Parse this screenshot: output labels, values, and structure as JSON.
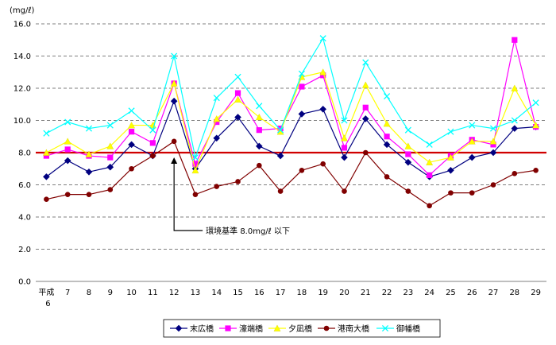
{
  "chart_data": {
    "type": "line",
    "unit_label": "(mg/ℓ)",
    "y_ticks": [
      "0.0",
      "2.0",
      "4.0",
      "6.0",
      "8.0",
      "10.0",
      "12.0",
      "14.0",
      "16.0"
    ],
    "ylim": [
      0,
      16
    ],
    "grid": "horizontal dashed",
    "x_first_label": [
      "平成",
      "6"
    ],
    "categories": [
      "6",
      "7",
      "8",
      "9",
      "10",
      "11",
      "12",
      "13",
      "14",
      "15",
      "16",
      "17",
      "18",
      "19",
      "20",
      "21",
      "22",
      "23",
      "24",
      "25",
      "26",
      "27",
      "28",
      "29"
    ],
    "x_tick_labels": [
      "平成6",
      "7",
      "8",
      "9",
      "10",
      "11",
      "12",
      "13",
      "14",
      "15",
      "16",
      "17",
      "18",
      "19",
      "20",
      "21",
      "22",
      "23",
      "24",
      "25",
      "26",
      "27",
      "28",
      "29"
    ],
    "reference_line": {
      "value": 8.0,
      "color": "#d00000"
    },
    "annotation": {
      "text": "環境基準 8.0mg/ℓ 以下",
      "category": "12"
    },
    "legend_position": "bottom",
    "series": [
      {
        "name": "末広橋",
        "color": "#000080",
        "marker": "diamond",
        "values": [
          6.5,
          7.5,
          6.8,
          7.1,
          8.5,
          7.8,
          11.2,
          7.0,
          8.9,
          10.2,
          8.4,
          7.8,
          10.4,
          10.7,
          7.7,
          10.1,
          8.5,
          7.4,
          6.5,
          6.9,
          7.7,
          8.0,
          9.5,
          9.6
        ]
      },
      {
        "name": "濠端橋",
        "color": "#ff00ff",
        "marker": "square",
        "values": [
          7.8,
          8.2,
          7.8,
          7.7,
          9.3,
          8.6,
          12.3,
          7.3,
          9.9,
          11.7,
          9.4,
          9.5,
          12.1,
          12.8,
          8.3,
          10.8,
          9.0,
          7.9,
          6.6,
          7.8,
          8.8,
          8.5,
          15.0,
          9.6
        ]
      },
      {
        "name": "夕凪橋",
        "color": "#ffff00",
        "marker": "triangle",
        "values": [
          8.0,
          8.7,
          7.9,
          8.4,
          9.7,
          9.7,
          12.3,
          6.9,
          10.1,
          11.3,
          10.2,
          9.3,
          12.7,
          13.0,
          8.9,
          12.2,
          9.8,
          8.4,
          7.4,
          7.7,
          8.7,
          8.7,
          12.0,
          9.7
        ]
      },
      {
        "name": "港南大橋",
        "color": "#800000",
        "marker": "circle",
        "values": [
          5.1,
          5.4,
          5.4,
          5.7,
          7.0,
          7.8,
          8.7,
          5.4,
          5.9,
          6.2,
          7.2,
          5.6,
          6.9,
          7.3,
          5.6,
          8.0,
          6.5,
          5.6,
          4.7,
          5.5,
          5.5,
          6.0,
          6.7,
          6.9
        ]
      },
      {
        "name": "御幡橋",
        "color": "#00ffff",
        "marker": "x",
        "values": [
          9.2,
          9.9,
          9.5,
          9.7,
          10.6,
          9.4,
          14.0,
          7.7,
          11.4,
          12.7,
          10.9,
          9.4,
          12.9,
          15.1,
          10.0,
          13.6,
          11.5,
          9.4,
          8.5,
          9.3,
          9.7,
          9.5,
          10.0,
          11.1
        ]
      }
    ]
  }
}
